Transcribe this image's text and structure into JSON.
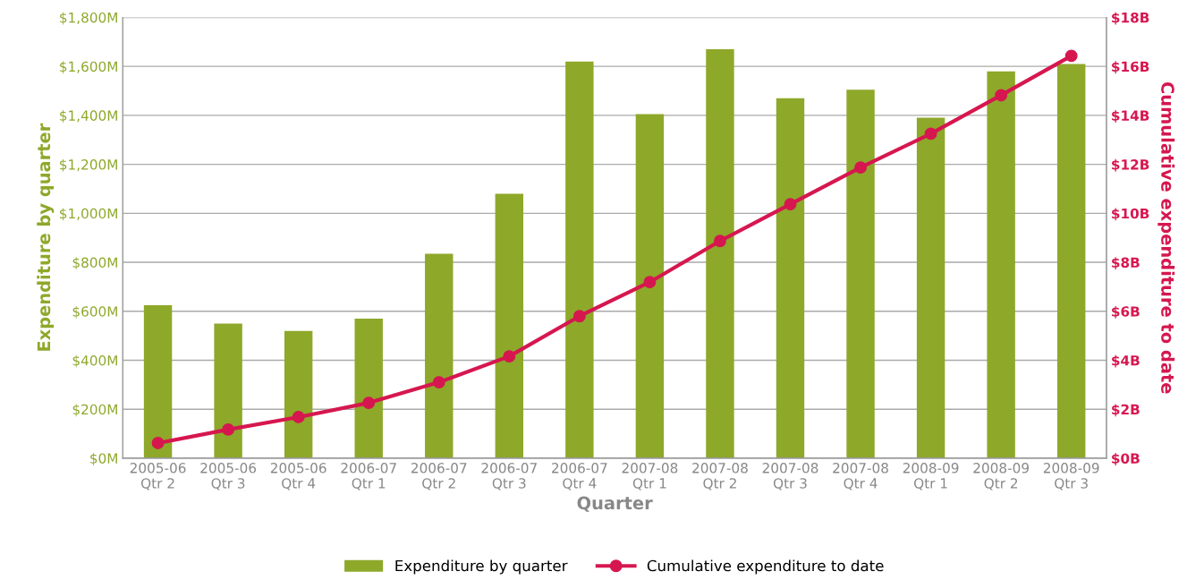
{
  "chart_data": {
    "type": "bar",
    "xlabel": "Quarter",
    "ylabel": "Expenditure by quarter",
    "y2label": "Cumulative expenditure to date",
    "categories": [
      "2005-06\nQtr 2",
      "2005-06\nQtr 3",
      "2005-06\nQtr 4",
      "2006-07\nQtr 1",
      "2006-07\nQtr 2",
      "2006-07\nQtr 3",
      "2006-07\nQtr 4",
      "2007-08\nQtr 1",
      "2007-08\nQtr 2",
      "2007-08\nQtr 3",
      "2007-08\nQtr 4",
      "2008-09\nQtr 1",
      "2008-09\nQtr 2",
      "2008-09\nQtr 3"
    ],
    "series": [
      {
        "name": "Expenditure by quarter",
        "color": "#8ea82a",
        "values": [
          625,
          550,
          520,
          570,
          835,
          1080,
          1620,
          1405,
          1670,
          1470,
          1505,
          1390,
          1580,
          1610
        ]
      },
      {
        "name": "Cumulative expenditure to date",
        "type": "line",
        "axis": "y2",
        "color": "#d6174f",
        "marker": "circle",
        "values": [
          0.62,
          1.17,
          1.68,
          2.26,
          3.1,
          4.16,
          5.8,
          7.19,
          8.87,
          10.37,
          11.87,
          13.25,
          14.82,
          16.43
        ]
      }
    ],
    "ylim": [
      0,
      1800
    ],
    "yticks": [
      {
        "value": 0,
        "label": "$0M"
      },
      {
        "value": 200,
        "label": "$200M"
      },
      {
        "value": 400,
        "label": "$400M"
      },
      {
        "value": 600,
        "label": "$600M"
      },
      {
        "value": 800,
        "label": "$800M"
      },
      {
        "value": 1000,
        "label": "$1,000M"
      },
      {
        "value": 1200,
        "label": "$1,200M"
      },
      {
        "value": 1400,
        "label": "$1,400M"
      },
      {
        "value": 1600,
        "label": "$1,600M"
      },
      {
        "value": 1800,
        "label": "$1,800M"
      }
    ],
    "y2lim": [
      0,
      18
    ],
    "y2ticks": [
      {
        "value": 0,
        "label": "$0B"
      },
      {
        "value": 2,
        "label": "$2B"
      },
      {
        "value": 4,
        "label": "$4B"
      },
      {
        "value": 6,
        "label": "$6B"
      },
      {
        "value": 8,
        "label": "$8B"
      },
      {
        "value": 10,
        "label": "$10B"
      },
      {
        "value": 12,
        "label": "$12B"
      },
      {
        "value": 14,
        "label": "$14B"
      },
      {
        "value": 16,
        "label": "$16B"
      },
      {
        "value": 18,
        "label": "$18B"
      }
    ],
    "grid": "y",
    "legend": "bottom"
  }
}
